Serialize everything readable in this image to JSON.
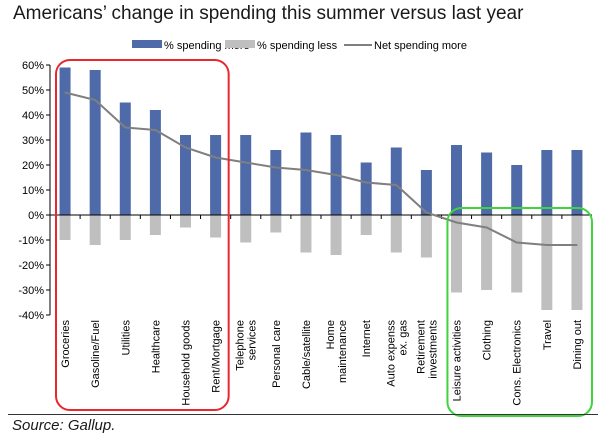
{
  "title": "Americans’ change in spending this summer versus last year",
  "source": "Source: Gallup.",
  "chart_data": {
    "type": "bar",
    "categories": [
      "Groceries",
      "Gasoline/Fuel",
      "Utilities",
      "Healthcare",
      "Household goods",
      "Rent/Mortgage",
      "Telephone services",
      "Personal care",
      "Cable/satellite",
      "Home maintenance",
      "Internet",
      "Auto expenses ex. gas",
      "Retirement investments",
      "Leisure activities",
      "Clothing",
      "Cons. Electronics",
      "Travel",
      "Dining out"
    ],
    "series": [
      {
        "name": "% spending more",
        "color": "#4f6aa8",
        "values": [
          59,
          58,
          45,
          42,
          32,
          32,
          32,
          26,
          33,
          32,
          21,
          27,
          18,
          28,
          25,
          20,
          26,
          26
        ]
      },
      {
        "name": "% spending less",
        "color": "#bfbfbf",
        "values": [
          -10,
          -12,
          -10,
          -8,
          -5,
          -9,
          -11,
          -7,
          -15,
          -16,
          -8,
          -15,
          -17,
          -31,
          -30,
          -31,
          -38,
          -38
        ]
      },
      {
        "name": "Net spending more",
        "color": "#7f7f7f",
        "values": [
          49,
          46,
          35,
          34,
          27,
          23,
          21,
          19,
          18,
          16,
          13,
          12,
          1,
          -3,
          -5,
          -11,
          -12,
          -12
        ]
      }
    ],
    "ylim": [
      -40,
      60
    ],
    "yticks": [
      -40,
      -30,
      -20,
      -10,
      0,
      10,
      20,
      30,
      40,
      50,
      60
    ],
    "ytick_labels": [
      "-40%",
      "-30%",
      "-20%",
      "-10%",
      "0%",
      "10%",
      "20%",
      "30%",
      "40%",
      "50%",
      "60%"
    ],
    "xlabel": "",
    "ylabel": "",
    "grid": false,
    "legend_position": "top",
    "highlight_groups": [
      {
        "color": "#e8282f",
        "first_category": "Groceries",
        "last_category": "Rent/Mortgage"
      },
      {
        "color": "#3fd33f",
        "first_category": "Leisure activities",
        "last_category": "Dining out"
      }
    ]
  }
}
